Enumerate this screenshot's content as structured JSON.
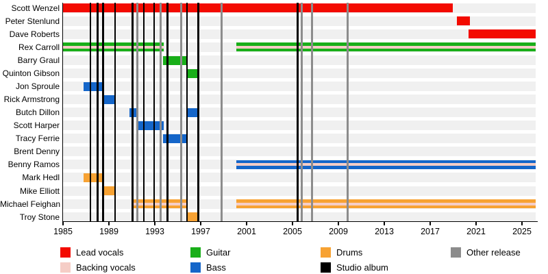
{
  "chart_data": {
    "type": "timeline",
    "description": "Band members tenure timeline, 1985-2025",
    "x_axis": {
      "start": 1985,
      "end": 2026.2,
      "ticks": [
        1985,
        1989,
        1993,
        1997,
        2001,
        2005,
        2009,
        2013,
        2017,
        2021,
        2025
      ]
    },
    "roles": {
      "lead_vocals": {
        "label": "Lead vocals",
        "color": "#f30b00"
      },
      "backing_vocals": {
        "label": "Backing vocals",
        "color": "#f5cdc6"
      },
      "guitar": {
        "label": "Guitar",
        "color": "#19af19"
      },
      "bass": {
        "label": "Bass",
        "color": "#1566c9"
      },
      "drums": {
        "label": "Drums",
        "color": "#f7a233"
      },
      "studio_album": {
        "label": "Studio album",
        "color": "#000000"
      },
      "other_release": {
        "label": "Other release",
        "color": "#8c8c8c"
      }
    },
    "members": [
      {
        "name": "Scott Wenzel",
        "bars": [
          {
            "roles": [
              "lead_vocals"
            ],
            "from": 1985,
            "to": 2018.95
          }
        ]
      },
      {
        "name": "Peter Stenlund",
        "bars": [
          {
            "roles": [
              "lead_vocals"
            ],
            "from": 2019.35,
            "to": 2020.45
          }
        ]
      },
      {
        "name": "Dave Roberts",
        "bars": [
          {
            "roles": [
              "lead_vocals"
            ],
            "from": 2020.35,
            "to": 2026.2
          }
        ]
      },
      {
        "name": "Rex Carroll",
        "bars": [
          {
            "roles": [
              "guitar",
              "backing_vocals"
            ],
            "from": 1985,
            "to": 1993.75
          },
          {
            "roles": [
              "guitar",
              "backing_vocals"
            ],
            "from": 2000.1,
            "to": 2026.2
          }
        ]
      },
      {
        "name": "Barry Graul",
        "bars": [
          {
            "roles": [
              "guitar"
            ],
            "from": 1993.7,
            "to": 1995.8
          }
        ]
      },
      {
        "name": "Quinton Gibson",
        "bars": [
          {
            "roles": [
              "guitar"
            ],
            "from": 1995.8,
            "to": 1996.85
          }
        ]
      },
      {
        "name": "Jon Sproule",
        "bars": [
          {
            "roles": [
              "bass"
            ],
            "from": 1986.8,
            "to": 1988.45
          }
        ]
      },
      {
        "name": "Rick Armstrong",
        "bars": [
          {
            "roles": [
              "bass"
            ],
            "from": 1988.5,
            "to": 1989.55
          }
        ]
      },
      {
        "name": "Butch Dillon",
        "bars": [
          {
            "roles": [
              "bass"
            ],
            "from": 1990.8,
            "to": 1991.5
          },
          {
            "roles": [
              "bass"
            ],
            "from": 1995.8,
            "to": 1996.8
          }
        ]
      },
      {
        "name": "Scott Harper",
        "bars": [
          {
            "roles": [
              "bass"
            ],
            "from": 1991.55,
            "to": 1993.75
          }
        ]
      },
      {
        "name": "Tracy Ferrie",
        "bars": [
          {
            "roles": [
              "bass"
            ],
            "from": 1993.7,
            "to": 1995.8
          }
        ]
      },
      {
        "name": "Brent Denny",
        "bars": []
      },
      {
        "name": "Benny Ramos",
        "bars": [
          {
            "roles": [
              "bass",
              "backing_vocals"
            ],
            "from": 2000.1,
            "to": 2026.2
          }
        ]
      },
      {
        "name": "Mark Hedl",
        "bars": [
          {
            "roles": [
              "drums"
            ],
            "from": 1986.8,
            "to": 1988.45
          }
        ]
      },
      {
        "name": "Mike Elliott",
        "bars": [
          {
            "roles": [
              "drums"
            ],
            "from": 1988.5,
            "to": 1989.5
          }
        ]
      },
      {
        "name": "Michael Feighan",
        "bars": [
          {
            "roles": [
              "drums",
              "backing_vocals"
            ],
            "from": 1991.0,
            "to": 1995.8
          },
          {
            "roles": [
              "drums",
              "backing_vocals"
            ],
            "from": 2000.1,
            "to": 2026.2
          }
        ]
      },
      {
        "name": "Troy Stone",
        "bars": [
          {
            "roles": [
              "drums"
            ],
            "from": 1995.8,
            "to": 1996.8
          }
        ]
      }
    ],
    "events": {
      "studio_albums": [
        1987.4,
        1988.0,
        1988.5,
        1989.55,
        1991.05,
        1992.05,
        1992.95,
        1994.1,
        1995.8,
        1996.8,
        2005.45
      ],
      "other_releases": [
        1991.5,
        1993.5,
        1995.3,
        1998.8,
        2005.8,
        2006.7,
        2009.8
      ]
    },
    "legend": [
      {
        "role": "lead_vocals",
        "col": 0,
        "row": 0
      },
      {
        "role": "backing_vocals",
        "col": 0,
        "row": 1
      },
      {
        "role": "guitar",
        "col": 1,
        "row": 0
      },
      {
        "role": "bass",
        "col": 1,
        "row": 1
      },
      {
        "role": "drums",
        "col": 2,
        "row": 0
      },
      {
        "role": "studio_album",
        "col": 2,
        "row": 1
      },
      {
        "role": "other_release",
        "col": 3,
        "row": 0
      }
    ],
    "layout_hints": {
      "row_band_color": "#f0f0f0",
      "background": "#ffffff",
      "legend_position": "bottom"
    }
  }
}
